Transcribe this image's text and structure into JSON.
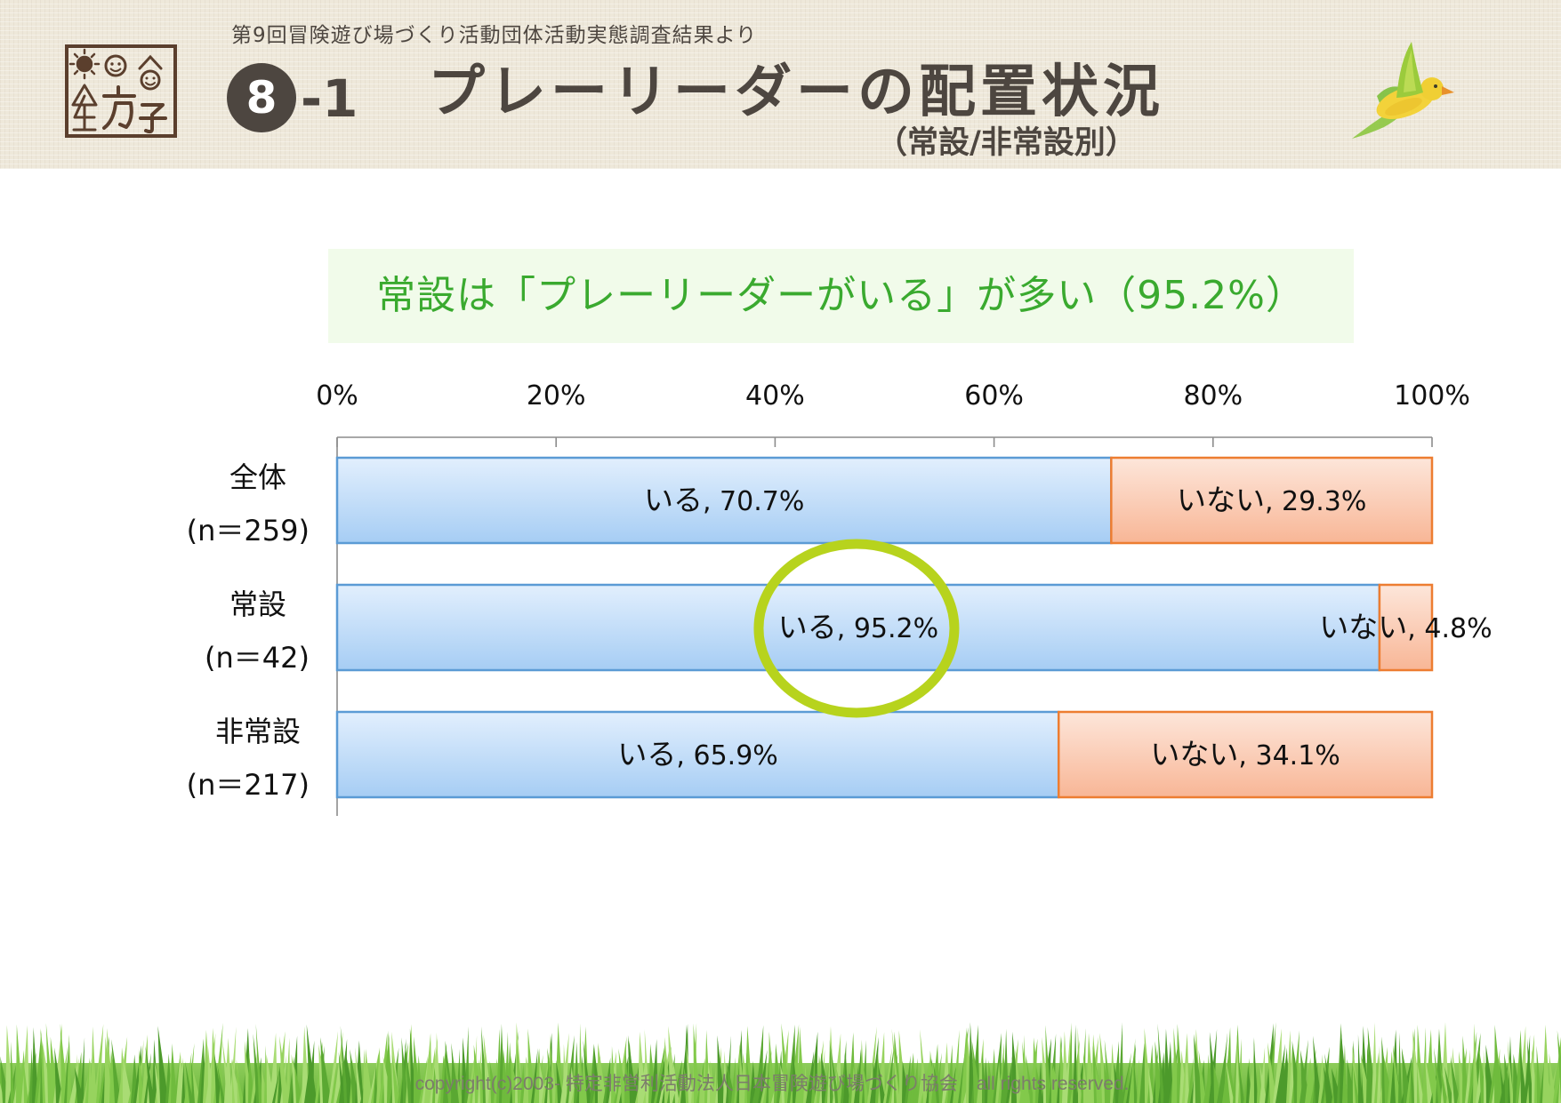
{
  "header": {
    "source_note": "第9回冒険遊び場づくり活動団体活動実態調査結果より",
    "section_number": "8",
    "section_suffix": "-1",
    "title": "プレーリーダーの配置状況",
    "subtitle": "（常設/非常設別）",
    "logo_icon": "playground-logo-icon",
    "bird_icon": "bird-icon",
    "background_color": "#eee8da",
    "text_color": "#4d4640"
  },
  "callout": {
    "text": "常設は「プレーリーダーがいる」が多い（95.2%）",
    "text_color": "#3aaa2f",
    "background_color": "#f1fbea"
  },
  "chart_data": {
    "type": "bar",
    "orientation": "horizontal",
    "stacked": true,
    "percent_stacked": true,
    "categories": [
      "全体",
      "常設",
      "非常設"
    ],
    "category_counts": [
      "(n＝259)",
      "(n＝42)",
      "(n＝217)"
    ],
    "series": [
      {
        "name": "いる",
        "values": [
          70.7,
          95.2,
          65.9
        ],
        "color_top": "#e2effd",
        "color_bottom": "#a6cdf4",
        "border_color": "#5b9bd5"
      },
      {
        "name": "いない",
        "values": [
          29.3,
          4.8,
          34.1
        ],
        "color_top": "#fde6da",
        "color_bottom": "#f8b696",
        "border_color": "#ed7d31"
      }
    ],
    "x_ticks": [
      "0%",
      "20%",
      "40%",
      "60%",
      "80%",
      "100%"
    ],
    "xlim": [
      0,
      100
    ],
    "x_axis_position": "top",
    "data_labels": true,
    "legend": "none",
    "grid": false,
    "axis_color": "#8c8c8c",
    "highlight": {
      "category": "常設",
      "series": "いる",
      "shape": "ellipse",
      "color": "#b7d31d"
    }
  },
  "footer": {
    "copyright": "copyright(c)2003- 特定非営利活動法人日本冒険遊び場づくり協会　all rights reserved.",
    "text_color": "#7c7c6c",
    "grass_colors": [
      "#5aa832",
      "#6fbb3d",
      "#82c94b",
      "#97d35e",
      "#4c9a2b",
      "#a9dc74"
    ]
  }
}
